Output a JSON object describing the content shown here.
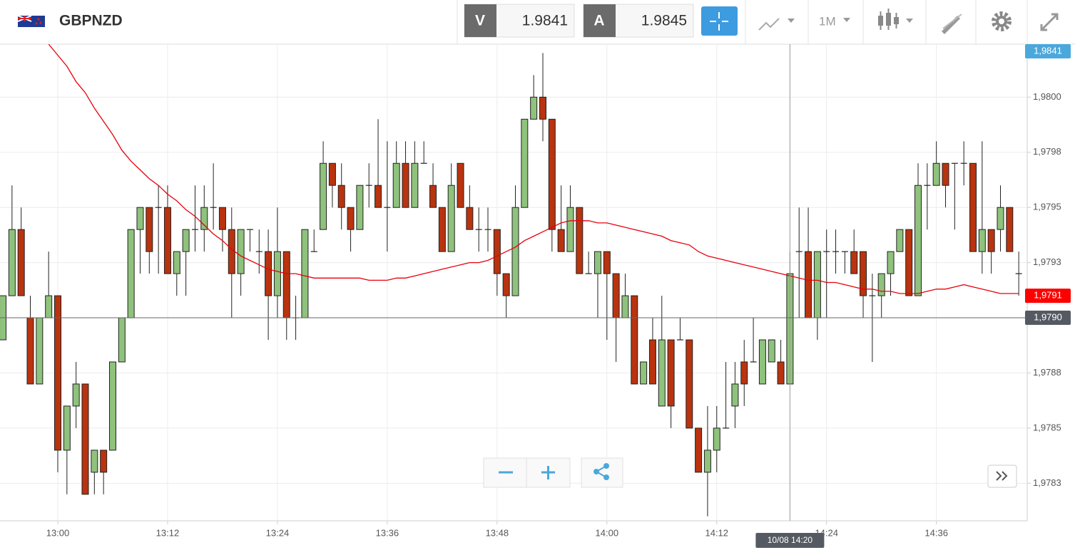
{
  "header": {
    "symbol": "GBPNZD",
    "bid_label": "V",
    "bid": 1.9841,
    "ask_label": "A",
    "ask": 1.9845,
    "timeframe": "1M"
  },
  "chart_data": {
    "type": "candlestick",
    "categories": [
      null,
      null,
      null,
      null,
      null,
      null,
      "13:00",
      null,
      null,
      null,
      null,
      null,
      null,
      null,
      null,
      null,
      null,
      null,
      "13:12",
      null,
      null,
      null,
      null,
      null,
      null,
      null,
      null,
      null,
      null,
      null,
      "13:24",
      null,
      null,
      null,
      null,
      null,
      null,
      null,
      null,
      null,
      null,
      null,
      "13:36",
      null,
      null,
      null,
      null,
      null,
      null,
      null,
      null,
      null,
      null,
      null,
      "13:48",
      null,
      null,
      null,
      null,
      null,
      null,
      null,
      null,
      null,
      null,
      null,
      "14:00",
      null,
      null,
      null,
      null,
      null,
      null,
      null,
      null,
      null,
      null,
      null,
      "14:12",
      null,
      null,
      null,
      null,
      null,
      null,
      null,
      null,
      null,
      null,
      null,
      "14:24",
      null,
      null,
      null,
      null,
      null,
      null,
      null,
      null,
      null,
      null,
      null,
      "14:36",
      null,
      null,
      null,
      null,
      null,
      null,
      null,
      null,
      null
    ],
    "open": [
      1.9789,
      1.9791,
      1.9794,
      1.979,
      1.9787,
      1.979,
      1.9791,
      1.9784,
      1.9786,
      1.9787,
      1.9783,
      1.9784,
      1.9784,
      1.9788,
      1.979,
      1.9794,
      1.9795,
      1.9795,
      1.9795,
      1.9792,
      1.9793,
      1.9794,
      1.9794,
      1.9795,
      1.9795,
      1.9794,
      1.9792,
      1.9794,
      1.9793,
      1.9793,
      1.9791,
      1.9793,
      1.979,
      1.979,
      1.9793,
      1.9794,
      1.9797,
      1.9796,
      1.9795,
      1.9794,
      1.9796,
      1.9796,
      1.9795,
      1.9795,
      1.9797,
      1.9795,
      1.9797,
      1.9796,
      1.9795,
      1.9793,
      1.9797,
      1.9795,
      1.9794,
      1.9794,
      1.9794,
      1.9792,
      1.9791,
      1.9795,
      1.9799,
      1.98,
      1.9799,
      1.9794,
      1.9793,
      1.9795,
      1.9792,
      1.9792,
      1.9793,
      1.9792,
      1.979,
      1.9791,
      1.9787,
      1.9789,
      1.9786,
      1.9789,
      1.9789,
      1.9789,
      1.9785,
      1.9783,
      1.9784,
      1.9785,
      1.9786,
      1.9788,
      1.9788,
      1.9787,
      1.9788,
      1.9788,
      1.9787,
      1.9793,
      1.9793,
      1.979,
      1.9793,
      1.9793,
      1.9793,
      1.9793,
      1.9793,
      1.9791,
      1.9791,
      1.9792,
      1.9793,
      1.9794,
      1.9791,
      1.9796,
      1.9796,
      1.9797,
      1.9797,
      1.9797,
      1.9797,
      1.9793,
      1.9794,
      1.9794,
      1.9795,
      1.9792
    ],
    "high": [
      1.9791,
      1.9796,
      1.9795,
      1.9791,
      1.979,
      1.9793,
      1.9791,
      1.9786,
      1.9788,
      1.9787,
      1.9784,
      1.9784,
      1.9788,
      1.979,
      1.9794,
      1.9795,
      1.9795,
      1.9796,
      1.9796,
      1.9793,
      1.9794,
      1.9796,
      1.9796,
      1.9797,
      1.9795,
      1.9795,
      1.9794,
      1.9794,
      1.9794,
      1.9794,
      1.9795,
      1.9793,
      1.9791,
      1.9794,
      1.9794,
      1.9798,
      1.9797,
      1.9797,
      1.9795,
      1.9796,
      1.9797,
      1.9799,
      1.9798,
      1.9798,
      1.9798,
      1.9798,
      1.9798,
      1.9797,
      1.9795,
      1.9797,
      1.9797,
      1.9796,
      1.9795,
      1.9795,
      1.9794,
      1.9792,
      1.9796,
      1.9799,
      1.9801,
      1.9802,
      1.9799,
      1.9796,
      1.9796,
      1.9795,
      1.9793,
      1.9793,
      1.9793,
      1.9792,
      1.9792,
      1.9791,
      1.9788,
      1.979,
      1.9791,
      1.9789,
      1.979,
      1.9789,
      1.9785,
      1.9786,
      1.9786,
      1.9788,
      1.9788,
      1.9789,
      1.979,
      1.9789,
      1.9789,
      1.9789,
      1.9793,
      1.9795,
      1.9795,
      1.9793,
      1.9794,
      1.9794,
      1.9793,
      1.9794,
      1.9793,
      1.9792,
      1.9792,
      1.9793,
      1.9794,
      1.9794,
      1.9797,
      1.9797,
      1.9798,
      1.9797,
      1.9797,
      1.9798,
      1.9797,
      1.9798,
      1.9794,
      1.9796,
      1.9795,
      1.9793
    ],
    "low": [
      1.9789,
      1.9791,
      1.9791,
      1.9787,
      1.9787,
      1.979,
      1.9783,
      1.9782,
      1.9785,
      1.9782,
      1.9782,
      1.9782,
      1.9784,
      1.9788,
      1.979,
      1.9792,
      1.9792,
      1.9792,
      1.9792,
      1.9791,
      1.9791,
      1.9793,
      1.9793,
      1.9794,
      1.9793,
      1.979,
      1.9791,
      1.9793,
      1.9792,
      1.9789,
      1.979,
      1.9789,
      1.9789,
      1.979,
      1.9793,
      1.9794,
      1.9795,
      1.9794,
      1.9793,
      1.9794,
      1.9795,
      1.9795,
      1.9793,
      1.9795,
      1.9795,
      1.9795,
      1.9797,
      1.9795,
      1.9793,
      1.9793,
      1.9795,
      1.9794,
      1.9793,
      1.9793,
      1.9791,
      1.979,
      1.9791,
      1.9795,
      1.9799,
      1.9798,
      1.9793,
      1.9793,
      1.9793,
      1.9792,
      1.9792,
      1.979,
      1.9789,
      1.9788,
      1.979,
      1.9787,
      1.9787,
      1.9787,
      1.9786,
      1.9785,
      1.9789,
      1.9785,
      1.9783,
      1.9781,
      1.9783,
      1.9785,
      1.9785,
      1.9786,
      1.9788,
      1.9787,
      1.9788,
      1.9787,
      1.9787,
      1.979,
      1.979,
      1.9789,
      1.979,
      1.9792,
      1.9792,
      1.9792,
      1.979,
      1.9788,
      1.979,
      1.9791,
      1.9793,
      1.9791,
      1.9791,
      1.9794,
      1.9796,
      1.9795,
      1.9794,
      1.9796,
      1.9793,
      1.9792,
      1.9792,
      1.9793,
      1.9793,
      1.9791
    ],
    "close": [
      1.9791,
      1.9794,
      1.9791,
      1.9787,
      1.979,
      1.9791,
      1.9784,
      1.9786,
      1.9787,
      1.9782,
      1.9784,
      1.9783,
      1.9788,
      1.979,
      1.9794,
      1.9795,
      1.9793,
      1.9795,
      1.9792,
      1.9793,
      1.9794,
      1.9794,
      1.9795,
      1.9795,
      1.9794,
      1.9792,
      1.9794,
      1.9794,
      1.9793,
      1.9791,
      1.9793,
      1.979,
      1.979,
      1.9794,
      1.9793,
      1.9797,
      1.9796,
      1.9795,
      1.9794,
      1.9796,
      1.9796,
      1.9795,
      1.9795,
      1.9797,
      1.9795,
      1.9797,
      1.9797,
      1.9795,
      1.9793,
      1.9796,
      1.9795,
      1.9794,
      1.9794,
      1.9794,
      1.9792,
      1.9791,
      1.9795,
      1.9799,
      1.98,
      1.9799,
      1.9794,
      1.9793,
      1.9795,
      1.9792,
      1.9792,
      1.9793,
      1.9792,
      1.979,
      1.9791,
      1.9787,
      1.9788,
      1.9787,
      1.9789,
      1.9786,
      1.9789,
      1.9785,
      1.9783,
      1.9784,
      1.9785,
      1.9785,
      1.9787,
      1.9787,
      1.9788,
      1.9789,
      1.9789,
      1.9787,
      1.9792,
      1.9793,
      1.979,
      1.9793,
      1.9793,
      1.9793,
      1.9793,
      1.9792,
      1.9791,
      1.9791,
      1.9792,
      1.9793,
      1.9794,
      1.9791,
      1.9796,
      1.9796,
      1.9797,
      1.9796,
      1.9797,
      1.9797,
      1.9793,
      1.9794,
      1.9793,
      1.9795,
      1.9793,
      1.9792
    ],
    "up_color": "#8fc27c",
    "down_color": "#b9330f",
    "moving_average": {
      "color": "#e8000b",
      "values": [
        null,
        null,
        null,
        null,
        null,
        1.98024,
        1.98019,
        1.98014,
        1.98007,
        1.98002,
        1.97995,
        1.97989,
        1.97983,
        1.97976,
        1.97971,
        1.97967,
        1.97963,
        1.9796,
        1.97956,
        1.97953,
        1.97949,
        1.97946,
        1.97942,
        1.97938,
        1.97935,
        1.97931,
        1.97928,
        1.97926,
        1.97924,
        1.97922,
        1.97921,
        1.9792,
        1.9792,
        1.97919,
        1.97918,
        1.97918,
        1.97918,
        1.97918,
        1.97918,
        1.97918,
        1.97917,
        1.97917,
        1.97917,
        1.97918,
        1.97918,
        1.97919,
        1.9792,
        1.97921,
        1.97922,
        1.97923,
        1.97924,
        1.97925,
        1.97925,
        1.97926,
        1.97928,
        1.9793,
        1.97932,
        1.97935,
        1.97937,
        1.97939,
        1.97941,
        1.97943,
        1.97944,
        1.97944,
        1.97944,
        1.97943,
        1.97943,
        1.97942,
        1.97941,
        1.9794,
        1.97939,
        1.97938,
        1.97937,
        1.97935,
        1.97934,
        1.97933,
        1.9793,
        1.97928,
        1.97927,
        1.97926,
        1.97925,
        1.97924,
        1.97923,
        1.97922,
        1.97921,
        1.9792,
        1.97919,
        1.97918,
        1.97917,
        1.97917,
        1.97916,
        1.97916,
        1.97915,
        1.97914,
        1.97913,
        1.97913,
        1.97912,
        1.97912,
        1.97911,
        1.97911,
        1.97911,
        1.97912,
        1.97913,
        1.97913,
        1.97914,
        1.97915,
        1.97914,
        1.97913,
        1.97912,
        1.97911,
        1.97911,
        1.97911
      ]
    },
    "ylim": [
      1.97808,
      1.98024
    ],
    "yticks": [
      {
        "value": 1.97825,
        "label": "1,9783"
      },
      {
        "value": 1.9785,
        "label": "1,9785"
      },
      {
        "value": 1.97875,
        "label": "1,9788"
      },
      {
        "value": 1.97925,
        "label": "1,9793"
      },
      {
        "value": 1.9795,
        "label": "1,9795"
      },
      {
        "value": 1.97975,
        "label": "1,9798"
      },
      {
        "value": 1.98,
        "label": "1,9800"
      }
    ],
    "grid": true,
    "price_labels": [
      {
        "value": 1.9841,
        "label": "1,9841",
        "color": "#4aa8dc"
      },
      {
        "value": 1.9791,
        "label": "1,9791",
        "color": "#ff0000"
      }
    ],
    "crosshair": {
      "index": 86,
      "time_label": "10/08 14:20",
      "price": {
        "value": 1.979,
        "label": "1,9790"
      }
    }
  }
}
